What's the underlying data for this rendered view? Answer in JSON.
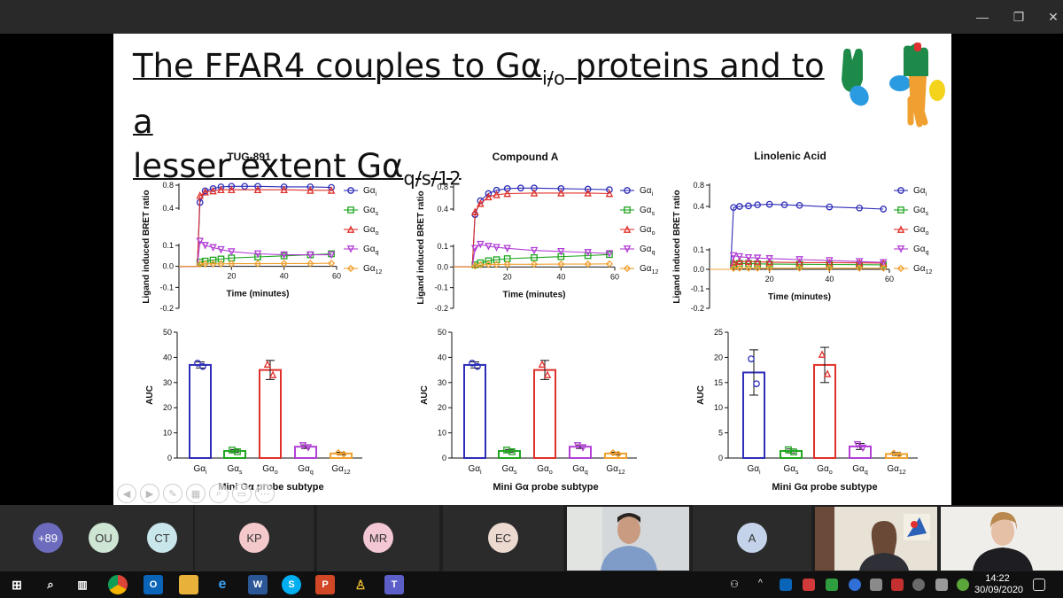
{
  "slide": {
    "title_line1_pre": "The FFAR4 couples to G",
    "title_alpha": "α",
    "title_line1_sub": "i/o",
    "title_line1_post": " proteins and to a",
    "title_line2_pre": "lesser extent G",
    "title_line2_sub": "q/s/12"
  },
  "legend": [
    {
      "main": "Gα",
      "sub": "i",
      "color": "#2d2db8",
      "marker": "circle"
    },
    {
      "main": "Gα",
      "sub": "s",
      "color": "#1fa51f",
      "marker": "square"
    },
    {
      "main": "Gα",
      "sub": "o",
      "color": "#e0302a",
      "marker": "triangle-up"
    },
    {
      "main": "Gα",
      "sub": "q",
      "color": "#b23fd6",
      "marker": "triangle-down"
    },
    {
      "main": "Gα",
      "sub": "12",
      "color": "#f0a030",
      "marker": "diamond"
    }
  ],
  "chart_data": [
    {
      "type": "line",
      "title": "TUG-891",
      "xlabel": "Time (minutes)",
      "ylabel": "Ligand induced BRET ratio",
      "xlim": [
        0,
        60
      ],
      "x_ticks": [
        "20",
        "40",
        "60"
      ],
      "y_ticks": [
        "0.8",
        "0.4",
        "0.1",
        "0.0",
        "-0.1",
        "-0.2"
      ],
      "y_tick_values": [
        0.8,
        0.4,
        0.1,
        0.0,
        -0.1,
        -0.2
      ],
      "split_axis": true,
      "series": [
        {
          "name": "Gαi",
          "x": [
            0,
            7,
            8,
            10,
            13,
            16,
            20,
            25,
            30,
            40,
            50,
            58
          ],
          "y": [
            0,
            0,
            0.5,
            0.7,
            0.74,
            0.77,
            0.78,
            0.78,
            0.78,
            0.77,
            0.77,
            0.76
          ]
        },
        {
          "name": "Gαs",
          "x": [
            0,
            7,
            8,
            10,
            13,
            16,
            20,
            30,
            40,
            50,
            58
          ],
          "y": [
            0,
            0,
            0.02,
            0.025,
            0.03,
            0.035,
            0.04,
            0.045,
            0.05,
            0.055,
            0.06
          ]
        },
        {
          "name": "Gαo",
          "x": [
            0,
            7,
            8,
            10,
            13,
            16,
            20,
            30,
            40,
            50,
            58
          ],
          "y": [
            0,
            0,
            0.62,
            0.68,
            0.7,
            0.72,
            0.72,
            0.72,
            0.72,
            0.71,
            0.71
          ]
        },
        {
          "name": "Gαq",
          "x": [
            0,
            7,
            8,
            10,
            13,
            16,
            20,
            30,
            40,
            50,
            58
          ],
          "y": [
            0,
            0,
            0.12,
            0.1,
            0.09,
            0.08,
            0.07,
            0.06,
            0.055,
            0.055,
            0.055
          ]
        },
        {
          "name": "Gα12",
          "x": [
            0,
            7,
            8,
            10,
            13,
            16,
            20,
            30,
            40,
            50,
            58
          ],
          "y": [
            0,
            0,
            0.01,
            0.012,
            0.012,
            0.012,
            0.013,
            0.013,
            0.014,
            0.014,
            0.015
          ]
        }
      ]
    },
    {
      "type": "line",
      "title": "Compound A",
      "xlabel": "Time (minutes)",
      "ylabel": "Ligand induced BRET ratio",
      "xlim": [
        0,
        60
      ],
      "x_ticks": [
        "20",
        "40",
        "60"
      ],
      "y_ticks": [
        "0.8",
        "0.4",
        "0.1",
        "0.0",
        "-0.1",
        "-0.2"
      ],
      "y_tick_values": [
        0.8,
        0.4,
        0.1,
        0.0,
        -0.1,
        -0.2
      ],
      "split_axis": true,
      "series": [
        {
          "name": "Gαi",
          "x": [
            0,
            7,
            8,
            10,
            13,
            16,
            20,
            25,
            30,
            40,
            50,
            58
          ],
          "y": [
            0,
            0,
            0.3,
            0.55,
            0.68,
            0.74,
            0.77,
            0.78,
            0.78,
            0.77,
            0.76,
            0.75
          ]
        },
        {
          "name": "Gαs",
          "x": [
            0,
            7,
            8,
            10,
            13,
            16,
            20,
            30,
            40,
            50,
            58
          ],
          "y": [
            0,
            0,
            0.01,
            0.02,
            0.03,
            0.035,
            0.04,
            0.045,
            0.05,
            0.055,
            0.06
          ]
        },
        {
          "name": "Gαo",
          "x": [
            0,
            7,
            8,
            10,
            13,
            16,
            20,
            30,
            40,
            50,
            58
          ],
          "y": [
            0,
            0,
            0.35,
            0.5,
            0.62,
            0.66,
            0.68,
            0.69,
            0.69,
            0.69,
            0.68
          ]
        },
        {
          "name": "Gαq",
          "x": [
            0,
            7,
            8,
            10,
            13,
            16,
            20,
            30,
            40,
            50,
            58
          ],
          "y": [
            0,
            0,
            0.09,
            0.11,
            0.1,
            0.095,
            0.09,
            0.08,
            0.075,
            0.07,
            0.065
          ]
        },
        {
          "name": "Gα12",
          "x": [
            0,
            7,
            8,
            10,
            13,
            16,
            20,
            30,
            40,
            50,
            58
          ],
          "y": [
            0,
            0,
            0.005,
            0.01,
            0.012,
            0.012,
            0.013,
            0.013,
            0.014,
            0.014,
            0.015
          ]
        }
      ]
    },
    {
      "type": "line",
      "title": "Linolenic Acid",
      "xlabel": "Time (minutes)",
      "ylabel": "Ligand induced BRET ratio",
      "xlim": [
        0,
        60
      ],
      "x_ticks": [
        "20",
        "40",
        "60"
      ],
      "y_ticks": [
        "0.8",
        "0.4",
        "0.1",
        "0.0",
        "-0.1",
        "-0.2"
      ],
      "y_tick_values": [
        0.8,
        0.4,
        0.1,
        0.0,
        -0.1,
        -0.2
      ],
      "split_axis": true,
      "series": [
        {
          "name": "Gαi",
          "x": [
            0,
            7,
            8,
            10,
            13,
            16,
            20,
            25,
            30,
            40,
            50,
            58
          ],
          "y": [
            0,
            0,
            0.38,
            0.4,
            0.41,
            0.43,
            0.44,
            0.43,
            0.42,
            0.39,
            0.37,
            0.35
          ]
        },
        {
          "name": "Gαs",
          "x": [
            0,
            7,
            8,
            10,
            13,
            16,
            20,
            30,
            40,
            50,
            58
          ],
          "y": [
            0,
            0,
            0.025,
            0.03,
            0.03,
            0.028,
            0.027,
            0.026,
            0.025,
            0.024,
            0.023
          ]
        },
        {
          "name": "Gαo",
          "x": [
            0,
            7,
            8,
            10,
            13,
            16,
            20,
            30,
            40,
            50,
            58
          ],
          "y": [
            0,
            0,
            0.035,
            0.04,
            0.04,
            0.038,
            0.037,
            0.035,
            0.034,
            0.033,
            0.032
          ]
        },
        {
          "name": "Gαq",
          "x": [
            0,
            7,
            8,
            10,
            13,
            16,
            20,
            30,
            40,
            50,
            58
          ],
          "y": [
            0,
            0,
            0.07,
            0.065,
            0.06,
            0.058,
            0.055,
            0.05,
            0.045,
            0.04,
            0.035
          ]
        },
        {
          "name": "Gα12",
          "x": [
            0,
            7,
            8,
            10,
            13,
            16,
            20,
            30,
            40,
            50,
            58
          ],
          "y": [
            0,
            0,
            0.005,
            0.006,
            0.006,
            0.006,
            0.006,
            0.006,
            0.006,
            0.006,
            0.006
          ]
        }
      ]
    },
    {
      "type": "bar",
      "ylabel": "AUC",
      "xlabel": "Mini Gα probe subtype",
      "ylim": [
        0,
        50
      ],
      "y_ticks": [
        "0",
        "10",
        "20",
        "30",
        "40",
        "50"
      ],
      "categories": [
        "Gαi",
        "Gαs",
        "Gαo",
        "Gαq",
        "Gα12"
      ],
      "values": [
        37,
        2.8,
        35,
        4.5,
        1.8
      ],
      "errors": [
        1.2,
        0.6,
        3.8,
        0.7,
        0.5
      ]
    },
    {
      "type": "bar",
      "ylabel": "AUC",
      "xlabel": "Mini Gα probe subtype",
      "ylim": [
        0,
        50
      ],
      "y_ticks": [
        "0",
        "10",
        "20",
        "30",
        "40",
        "50"
      ],
      "categories": [
        "Gαi",
        "Gαs",
        "Gαo",
        "Gαq",
        "Gα12"
      ],
      "values": [
        37,
        2.8,
        35,
        4.5,
        1.8
      ],
      "errors": [
        1.2,
        0.6,
        3.8,
        0.7,
        0.5
      ]
    },
    {
      "type": "bar",
      "ylabel": "AUC",
      "xlabel": "Mini Gα probe subtype",
      "ylim": [
        0,
        25
      ],
      "y_ticks": [
        "0",
        "5",
        "10",
        "15",
        "20",
        "25"
      ],
      "categories": [
        "Gαi",
        "Gαs",
        "Gαo",
        "Gαq",
        "Gα12"
      ],
      "values": [
        17,
        1.4,
        18.5,
        2.3,
        0.8
      ],
      "errors": [
        4.5,
        0.4,
        3.5,
        0.6,
        0.3
      ]
    }
  ],
  "participants": [
    {
      "initials": "+89",
      "color": "#6c6bbd"
    },
    {
      "initials": "OU",
      "color": "#cfe5d4"
    },
    {
      "initials": "CT",
      "color": "#c9e6ea"
    },
    {
      "initials": "KP",
      "color": "#f4c9cc"
    },
    {
      "initials": "MR",
      "color": "#f3c7d3"
    },
    {
      "initials": "EC",
      "color": "#ecd9d0"
    },
    {
      "initials": "A",
      "color": "#c5d3ea"
    }
  ],
  "taskbar": {
    "time": "14:22",
    "date": "30/09/2020"
  }
}
